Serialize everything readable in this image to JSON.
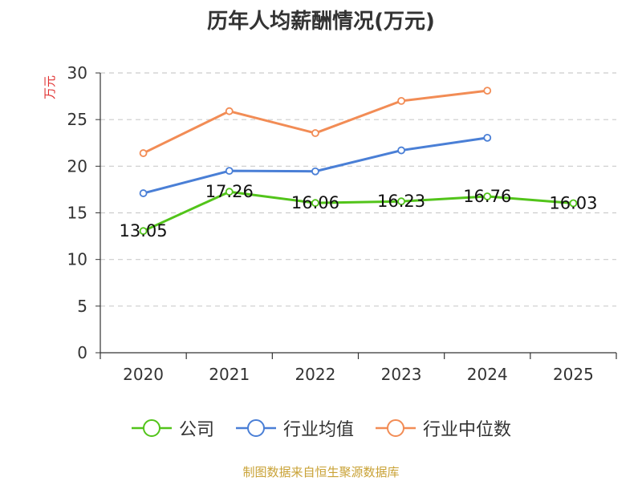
{
  "chart_data": {
    "type": "line",
    "title": "历年人均薪酬情况(万元)",
    "ylabel": "万元",
    "xlabel": "",
    "categories": [
      "2020",
      "2021",
      "2022",
      "2023",
      "2024",
      "2025"
    ],
    "ylim": [
      0,
      30
    ],
    "yticks": [
      0,
      5,
      10,
      15,
      20,
      25,
      30
    ],
    "grid": true,
    "legend_position": "bottom",
    "series": [
      {
        "name": "公司",
        "color": "#52c41a",
        "values": [
          13.05,
          17.26,
          16.06,
          16.23,
          16.76,
          16.03
        ],
        "labels": [
          "13.05",
          "17.26",
          "16.06",
          "16.23",
          "16.76",
          "16.03"
        ]
      },
      {
        "name": "行业均值",
        "color": "#4a7fd6",
        "values": [
          17.1,
          19.5,
          19.45,
          21.7,
          23.05,
          null
        ]
      },
      {
        "name": "行业中位数",
        "color": "#f28c55",
        "values": [
          21.4,
          25.9,
          23.55,
          27.0,
          28.1,
          null
        ]
      }
    ]
  },
  "colors": {
    "ylabel": "#e03030",
    "source": "#c9a236",
    "axis": "#333333",
    "grid": "#cccccc"
  },
  "source": "制图数据来自恒生聚源数据库"
}
